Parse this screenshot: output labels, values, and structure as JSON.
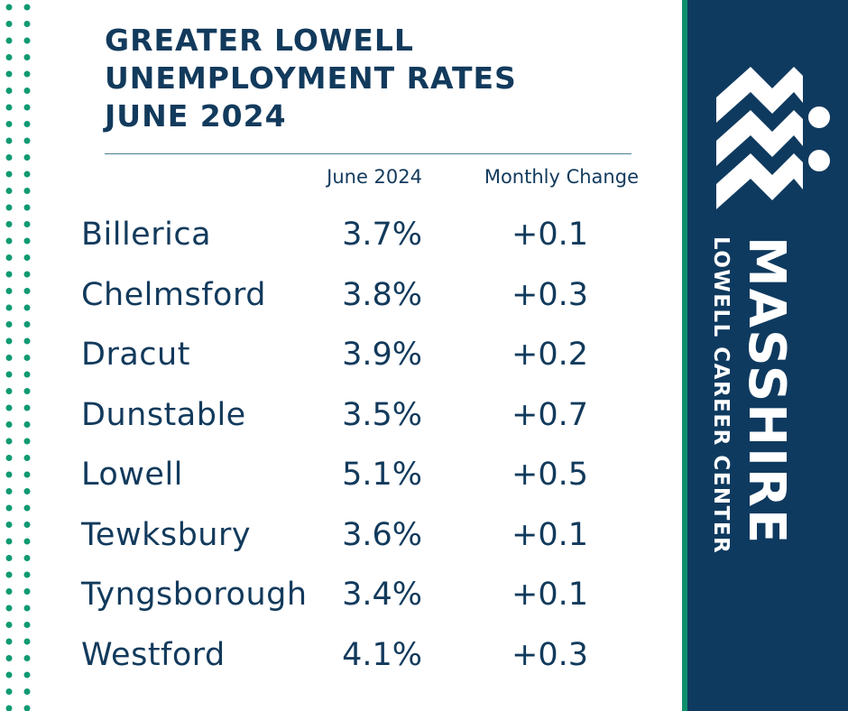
{
  "title_lines": [
    "GREATER LOWELL",
    "UNEMPLOYMENT RATES",
    "JUNE 2024"
  ],
  "brand": {
    "name": "MASSHIRE",
    "sub": "LOWELL CAREER CENTER",
    "logo_icon": "masshire-logo-icon"
  },
  "colors": {
    "navy": "#0f3a5f",
    "text": "#123a5c",
    "accent_green": "#0f8f6c",
    "dots": "#109a72"
  },
  "chart_data": {
    "type": "table",
    "title": "GREATER LOWELL UNEMPLOYMENT RATES JUNE 2024",
    "columns": [
      "June 2024",
      "Monthly Change"
    ],
    "rows": [
      {
        "town": "Billerica",
        "rate": "3.7%",
        "change": "+0.1"
      },
      {
        "town": "Chelmsford",
        "rate": "3.8%",
        "change": "+0.3"
      },
      {
        "town": "Dracut",
        "rate": "3.9%",
        "change": "+0.2"
      },
      {
        "town": "Dunstable",
        "rate": "3.5%",
        "change": "+0.7"
      },
      {
        "town": "Lowell",
        "rate": "5.1%",
        "change": "+0.5"
      },
      {
        "town": "Tewksbury",
        "rate": "3.6%",
        "change": "+0.1"
      },
      {
        "town": "Tyngsborough",
        "rate": "3.4%",
        "change": "+0.1"
      },
      {
        "town": "Westford",
        "rate": "4.1%",
        "change": "+0.3"
      }
    ]
  }
}
